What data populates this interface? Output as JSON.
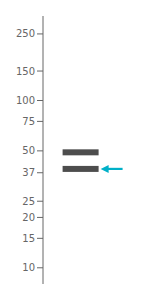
{
  "chart_data": {
    "type": "gel",
    "log": "y",
    "ylim": [
      8,
      320
    ],
    "yticks": [
      250,
      150,
      100,
      75,
      50,
      37,
      25,
      20,
      15,
      10
    ],
    "tick_labels": "y",
    "grid": false,
    "series": [
      {
        "type": "band",
        "color": "#3a3a3a",
        "values": [
          49,
          39
        ]
      },
      {
        "type": "arrow",
        "color": "#00b0c8",
        "values": [
          39
        ]
      }
    ]
  }
}
